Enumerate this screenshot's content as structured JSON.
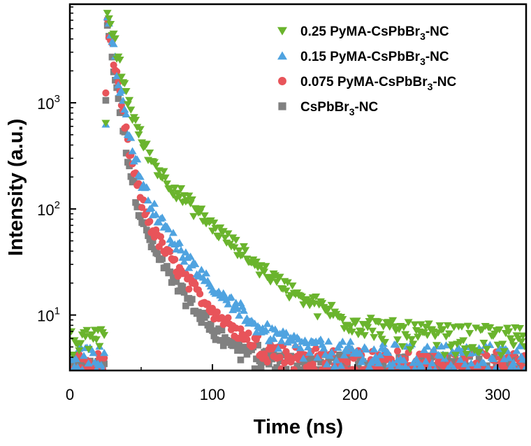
{
  "chart_data": {
    "type": "scatter",
    "xlabel": "Time (ns)",
    "ylabel": "Intensity (a.u.)",
    "x_range": [
      0,
      320
    ],
    "y_range": [
      3,
      8500
    ],
    "y_scale": "log",
    "x_ticks": [
      0,
      100,
      200,
      300
    ],
    "y_ticks": [
      {
        "value": 10,
        "base": "10",
        "exp": "1"
      },
      {
        "value": 100,
        "base": "10",
        "exp": "2"
      },
      {
        "value": 1000,
        "base": "10",
        "exp": "3"
      }
    ],
    "grid": false,
    "legend_position": "top-right",
    "series": [
      {
        "name_parts": [
          "0.25 PyMA-CsPbBr",
          "3",
          "-NC"
        ],
        "color": "#6ab42d",
        "marker": "triangle-down",
        "peak_time": 26,
        "peak": 8000,
        "tau1": 6.2,
        "tau2": 32,
        "a2_frac": 0.08,
        "background": 5.5
      },
      {
        "name_parts": [
          "0.15 PyMA-CsPbBr",
          "3",
          "-NC"
        ],
        "color": "#4fa3e0",
        "marker": "triangle-up",
        "peak_time": 26,
        "peak": 7200,
        "tau1": 5.2,
        "tau2": 24,
        "a2_frac": 0.045,
        "background": 3.8
      },
      {
        "name_parts": [
          "0.075 PyMA-CsPbBr",
          "3",
          "-NC"
        ],
        "color": "#e8545a",
        "marker": "circle",
        "peak_time": 26,
        "peak": 6500,
        "tau1": 4.8,
        "tau2": 22,
        "a2_frac": 0.035,
        "background": 3.3
      },
      {
        "name_parts": [
          "CsPbBr",
          "3",
          "-NC"
        ],
        "color": "#808080",
        "marker": "square",
        "peak_time": 26,
        "peak": 6000,
        "tau1": 4.5,
        "tau2": 20,
        "a2_frac": 0.03,
        "background": 3.0
      }
    ]
  }
}
